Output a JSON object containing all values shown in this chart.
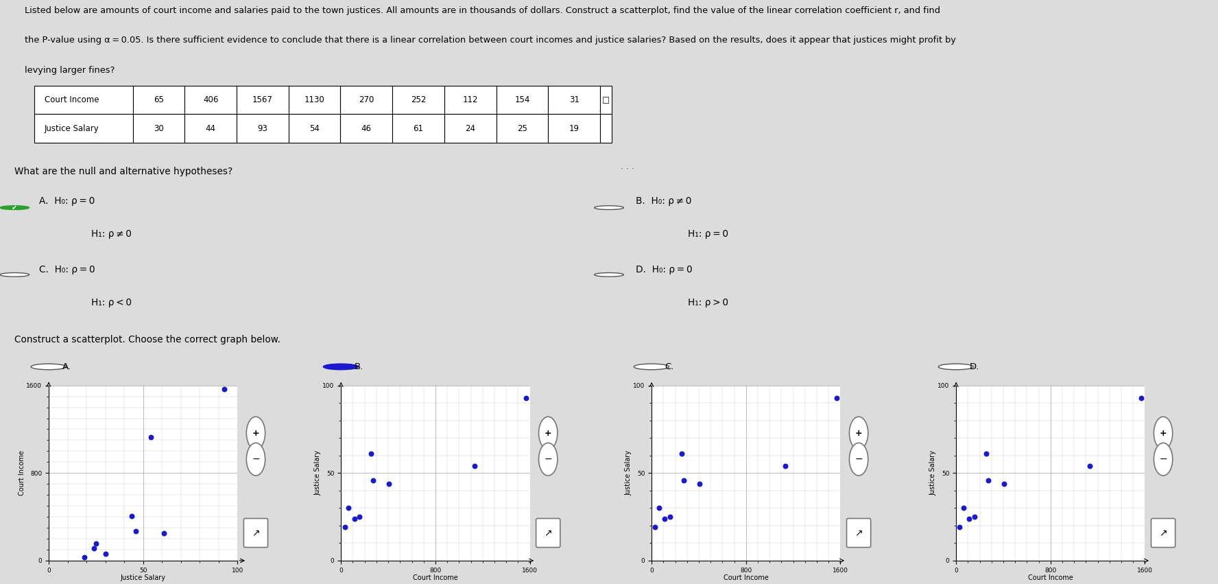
{
  "title_line1": "Listed below are amounts of court income and salaries paid to the town justices. All amounts are in thousands of dollars. Construct a scatterplot, find the value of the linear correlation coefficient r, and find",
  "title_line2": "the P-value using α = 0.05. Is there sufficient evidence to conclude that there is a linear correlation between court incomes and justice salaries? Based on the results, does it appear that justices might profit by",
  "title_line3": "levying larger fines?",
  "court_income": [
    65.0,
    406.0,
    1567.0,
    1130.0,
    270.0,
    252.0,
    112.0,
    154.0,
    31.0
  ],
  "justice_salary": [
    30,
    44,
    93,
    54,
    46,
    61,
    24,
    25,
    19
  ],
  "hypotheses_question": "What are the null and alternative hypotheses?",
  "hyp_A_h0": "H₀: ρ = 0",
  "hyp_A_h1": "H₁: ρ ≠ 0",
  "hyp_B_h0": "H₀: ρ ≠ 0",
  "hyp_B_h1": "H₁: ρ = 0",
  "hyp_C_h0": "H₀: ρ = 0",
  "hyp_C_h1": "H₁: ρ < 0",
  "hyp_D_h0": "H₀: ρ = 0",
  "hyp_D_h1": "H₁: ρ > 0",
  "scatter_question": "Construct a scatterplot. Choose the correct graph below.",
  "bg_color": "#dcdcdc",
  "scatter_dot_color": "#1a1acd",
  "scatter_dot_size": 22,
  "x_label": "Court Income",
  "y_label": "Justice Salary",
  "xlim": [
    0,
    1600
  ],
  "ylim": [
    0,
    100
  ],
  "plot_A_x": [
    30,
    44,
    93,
    54,
    46,
    61,
    24,
    25,
    19
  ],
  "plot_A_y": [
    65.0,
    406.0,
    1567.0,
    1130.0,
    270.0,
    252.0,
    112.0,
    154.0,
    31.0
  ],
  "plot_A_xlim": [
    0,
    100
  ],
  "plot_A_ylim": [
    0,
    1600
  ],
  "plot_A_xticks": [
    0,
    50,
    100
  ],
  "plot_A_yticks": [
    0,
    800,
    1600
  ],
  "plot_A_xlabel": "Justice Salary",
  "plot_A_ylabel": "Court Income",
  "plot_B_x": [
    65.0,
    406.0,
    1567.0,
    1130.0,
    270.0,
    252.0,
    112.0,
    154.0,
    31.0
  ],
  "plot_B_y": [
    30,
    44,
    93,
    54,
    46,
    61,
    24,
    25,
    19
  ],
  "plot_C_x": [
    65.0,
    406.0,
    1567.0,
    1130.0,
    270.0,
    252.0,
    112.0,
    154.0,
    31.0
  ],
  "plot_C_y": [
    30,
    44,
    93,
    54,
    46,
    61,
    24,
    25,
    19
  ],
  "plot_D_x": [
    65.0,
    406.0,
    1567.0,
    1130.0,
    270.0,
    252.0,
    112.0,
    154.0,
    31.0
  ],
  "plot_D_y": [
    30,
    44,
    93,
    54,
    46,
    61,
    24,
    25,
    19
  ]
}
